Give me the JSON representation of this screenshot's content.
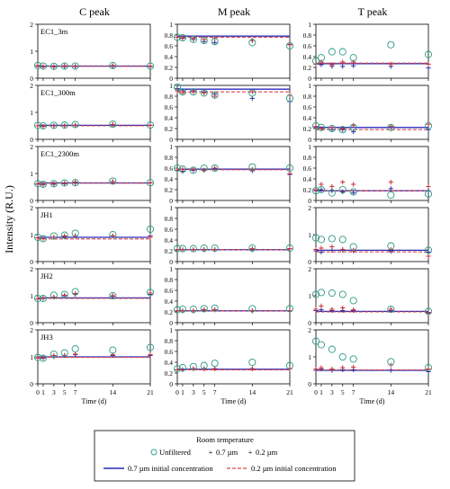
{
  "chart_data": {
    "type": "scatter",
    "column_titles": [
      "C peak",
      "M peak",
      "T peak"
    ],
    "ylabel": "Intensity (R.U.)",
    "xlabel": "Time (d)",
    "x_ticks": [
      0,
      1,
      3,
      5,
      7,
      14,
      21
    ],
    "xlim": [
      0,
      21
    ],
    "legend": {
      "title": "Room temperature",
      "items": [
        "Unfiltered",
        "0.7 µm",
        "0.2 µm"
      ],
      "line_items": [
        "0.7 µm initial concentration",
        "0.2 µm initial concentration"
      ]
    },
    "colors": {
      "unfiltered": "#2e9a84",
      "filtered_07": "#2f2fa0",
      "filtered_02": "#c8323c",
      "line_07": "#2a2ab8",
      "line_02": "#d84a4a"
    },
    "grid": false,
    "panels": [
      {
        "row": 0,
        "col": 0,
        "label": "EC1_3m",
        "ylim": [
          0,
          2
        ],
        "yticks": [
          0,
          1,
          2
        ],
        "days": [
          0,
          1,
          3,
          5,
          7,
          14,
          21
        ],
        "unfiltered": [
          0.47,
          0.45,
          0.44,
          0.45,
          0.45,
          0.47,
          0.45
        ],
        "f07": [
          0.44,
          0.42,
          0.42,
          0.43,
          0.43,
          0.44,
          0.43
        ],
        "f02": [
          0.47,
          0.43,
          0.43,
          0.46,
          0.44,
          0.47,
          0.45
        ],
        "init07": 0.45,
        "init02": 0.44
      },
      {
        "row": 0,
        "col": 1,
        "label": "",
        "ylim": [
          0,
          1
        ],
        "yticks": [
          0,
          0.2,
          0.4,
          0.6,
          0.8,
          1.0
        ],
        "days": [
          0,
          1,
          3,
          5,
          7,
          14,
          21
        ],
        "unfiltered": [
          0.76,
          0.75,
          0.72,
          0.7,
          0.68,
          0.66,
          0.6
        ],
        "f07": [
          0.76,
          0.74,
          0.72,
          0.68,
          0.66,
          0.7,
          0.62
        ],
        "f02": [
          0.76,
          0.75,
          0.74,
          0.72,
          0.74,
          0.7,
          0.63
        ],
        "init07": 0.78,
        "init02": 0.76
      },
      {
        "row": 0,
        "col": 2,
        "label": "",
        "ylim": [
          0,
          1
        ],
        "yticks": [
          0,
          0.2,
          0.4,
          0.6,
          0.8,
          1.0
        ],
        "days": [
          0,
          1,
          3,
          5,
          7,
          14,
          21
        ],
        "unfiltered": [
          0.32,
          0.38,
          0.49,
          0.49,
          0.38,
          0.62,
          0.44
        ],
        "f07": [
          0.26,
          0.25,
          0.22,
          0.22,
          0.23,
          0.22,
          0.19
        ],
        "f02": [
          0.26,
          0.3,
          0.25,
          0.3,
          0.3,
          0.26,
          0.26
        ],
        "init07": 0.27,
        "init02": 0.28
      },
      {
        "row": 1,
        "col": 0,
        "label": "EC1_300m",
        "ylim": [
          0,
          2
        ],
        "yticks": [
          0,
          1,
          2
        ],
        "days": [
          0,
          1,
          3,
          5,
          7,
          14,
          21
        ],
        "unfiltered": [
          0.52,
          0.5,
          0.52,
          0.53,
          0.55,
          0.56,
          0.53
        ],
        "f07": [
          0.5,
          0.48,
          0.5,
          0.5,
          0.52,
          0.55,
          0.52
        ],
        "f02": [
          0.5,
          0.48,
          0.5,
          0.5,
          0.52,
          0.55,
          0.52
        ],
        "init07": 0.52,
        "init02": 0.5
      },
      {
        "row": 1,
        "col": 1,
        "label": "",
        "ylim": [
          0,
          1
        ],
        "yticks": [
          0,
          0.2,
          0.4,
          0.6,
          0.8,
          1.0
        ],
        "days": [
          0,
          1,
          3,
          5,
          7,
          14,
          21
        ],
        "unfiltered": [
          0.97,
          0.88,
          0.88,
          0.86,
          0.82,
          0.86,
          0.76
        ],
        "f07": [
          0.94,
          0.9,
          0.9,
          0.88,
          0.84,
          0.76,
          0.7
        ],
        "f02": [
          0.9,
          0.86,
          0.88,
          0.86,
          0.8,
          0.88,
          0.82
        ],
        "init07": 0.93,
        "init02": 0.88
      },
      {
        "row": 1,
        "col": 2,
        "label": "",
        "ylim": [
          0,
          1
        ],
        "yticks": [
          0,
          0.2,
          0.4,
          0.6,
          0.8,
          1.0
        ],
        "days": [
          0,
          1,
          3,
          5,
          7,
          14,
          21
        ],
        "unfiltered": [
          0.25,
          0.22,
          0.2,
          0.18,
          0.22,
          0.22,
          0.25
        ],
        "f07": [
          0.22,
          0.2,
          0.18,
          0.18,
          0.14,
          0.22,
          0.18
        ],
        "f02": [
          0.24,
          0.2,
          0.22,
          0.2,
          0.26,
          0.24,
          0.28
        ],
        "init07": 0.22,
        "init02": 0.18
      },
      {
        "row": 2,
        "col": 0,
        "label": "EC1_2300m",
        "ylim": [
          0,
          2
        ],
        "yticks": [
          0,
          1,
          2
        ],
        "days": [
          0,
          1,
          3,
          5,
          7,
          14,
          21
        ],
        "unfiltered": [
          0.62,
          0.6,
          0.62,
          0.65,
          0.66,
          0.72,
          0.66
        ],
        "f07": [
          0.6,
          0.58,
          0.6,
          0.62,
          0.65,
          0.7,
          0.65
        ],
        "f02": [
          0.62,
          0.6,
          0.62,
          0.65,
          0.68,
          0.7,
          0.66
        ],
        "init07": 0.65,
        "init02": 0.64
      },
      {
        "row": 2,
        "col": 1,
        "label": "",
        "ylim": [
          0,
          1
        ],
        "yticks": [
          0,
          0.2,
          0.4,
          0.6,
          0.8,
          1.0
        ],
        "days": [
          0,
          1,
          3,
          5,
          7,
          14,
          21
        ],
        "unfiltered": [
          0.6,
          0.58,
          0.56,
          0.6,
          0.6,
          0.62,
          0.6
        ],
        "f07": [
          0.56,
          0.54,
          0.56,
          0.56,
          0.58,
          0.55,
          0.48
        ],
        "f02": [
          0.56,
          0.58,
          0.58,
          0.56,
          0.6,
          0.58,
          0.5
        ],
        "init07": 0.58,
        "init02": 0.57
      },
      {
        "row": 2,
        "col": 2,
        "label": "",
        "ylim": [
          0,
          1
        ],
        "yticks": [
          0,
          0.2,
          0.4,
          0.6,
          0.8,
          1.0
        ],
        "days": [
          0,
          1,
          3,
          5,
          7,
          14,
          21
        ],
        "unfiltered": [
          0.18,
          0.2,
          0.14,
          0.2,
          0.16,
          0.1,
          0.12
        ],
        "f07": [
          0.18,
          0.2,
          0.18,
          0.16,
          0.14,
          0.22,
          0.18
        ],
        "f02": [
          0.2,
          0.3,
          0.26,
          0.34,
          0.3,
          0.34,
          0.26
        ],
        "init07": 0.18,
        "init02": 0.18
      },
      {
        "row": 3,
        "col": 0,
        "label": "JH1",
        "ylim": [
          0,
          2
        ],
        "yticks": [
          0,
          1,
          2
        ],
        "days": [
          0,
          1,
          3,
          5,
          7,
          14,
          21
        ],
        "unfiltered": [
          0.9,
          0.85,
          0.95,
          0.98,
          1.05,
          1.0,
          1.2
        ],
        "f07": [
          0.88,
          0.85,
          0.9,
          0.92,
          0.95,
          0.95,
          0.95
        ],
        "f02": [
          0.88,
          0.85,
          0.9,
          0.95,
          0.95,
          0.95,
          0.9
        ],
        "init07": 0.9,
        "init02": 0.84
      },
      {
        "row": 3,
        "col": 1,
        "label": "",
        "ylim": [
          0,
          1
        ],
        "yticks": [
          0,
          0.2,
          0.4,
          0.6,
          0.8,
          1.0
        ],
        "days": [
          0,
          1,
          3,
          5,
          7,
          14,
          21
        ],
        "unfiltered": [
          0.24,
          0.24,
          0.24,
          0.25,
          0.25,
          0.25,
          0.25
        ],
        "f07": [
          0.22,
          0.22,
          0.22,
          0.22,
          0.22,
          0.22,
          0.24
        ],
        "f02": [
          0.22,
          0.22,
          0.22,
          0.22,
          0.22,
          0.24,
          0.24
        ],
        "init07": 0.22,
        "init02": 0.22
      },
      {
        "row": 3,
        "col": 2,
        "label": "",
        "ylim": [
          0,
          2
        ],
        "yticks": [
          0,
          1,
          2
        ],
        "days": [
          0,
          1,
          3,
          5,
          7,
          14,
          21
        ],
        "unfiltered": [
          0.88,
          0.82,
          0.85,
          0.82,
          0.55,
          0.58,
          0.42
        ],
        "f07": [
          0.4,
          0.35,
          0.42,
          0.42,
          0.4,
          0.38,
          0.35
        ],
        "f02": [
          0.45,
          0.5,
          0.55,
          0.45,
          0.42,
          0.45,
          0.2
        ],
        "init07": 0.42,
        "init02": 0.36
      },
      {
        "row": 4,
        "col": 0,
        "label": "JH2",
        "ylim": [
          0,
          2
        ],
        "yticks": [
          0,
          1,
          2
        ],
        "days": [
          0,
          1,
          3,
          5,
          7,
          14,
          21
        ],
        "unfiltered": [
          0.9,
          0.9,
          1.02,
          1.05,
          1.15,
          1.0,
          1.12
        ],
        "f07": [
          0.88,
          0.9,
          0.95,
          1.0,
          1.05,
          0.98,
          1.05
        ],
        "f02": [
          0.88,
          0.92,
          0.95,
          1.02,
          1.08,
          1.0,
          1.1
        ],
        "init07": 0.92,
        "init02": 0.9
      },
      {
        "row": 4,
        "col": 1,
        "label": "",
        "ylim": [
          0,
          1
        ],
        "yticks": [
          0,
          0.2,
          0.4,
          0.6,
          0.8,
          1.0
        ],
        "days": [
          0,
          1,
          3,
          5,
          7,
          14,
          21
        ],
        "unfiltered": [
          0.24,
          0.25,
          0.25,
          0.26,
          0.27,
          0.26,
          0.26
        ],
        "f07": [
          0.22,
          0.22,
          0.22,
          0.24,
          0.24,
          0.22,
          0.22
        ],
        "f02": [
          0.22,
          0.22,
          0.22,
          0.24,
          0.24,
          0.22,
          0.22
        ],
        "init07": 0.22,
        "init02": 0.22
      },
      {
        "row": 4,
        "col": 2,
        "label": "",
        "ylim": [
          0,
          2
        ],
        "yticks": [
          0,
          1,
          2
        ],
        "days": [
          0,
          1,
          3,
          5,
          7,
          14,
          21
        ],
        "unfiltered": [
          1.05,
          1.12,
          1.1,
          1.05,
          0.82,
          0.5,
          0.42
        ],
        "f07": [
          0.45,
          0.48,
          0.45,
          0.45,
          0.45,
          0.45,
          0.38
        ],
        "f02": [
          0.5,
          0.62,
          0.5,
          0.55,
          0.48,
          0.5,
          0.35
        ],
        "init07": 0.42,
        "init02": 0.4
      },
      {
        "row": 5,
        "col": 0,
        "label": "JH3",
        "ylim": [
          0,
          2
        ],
        "yticks": [
          0,
          1,
          2
        ],
        "days": [
          0,
          1,
          3,
          5,
          7,
          14,
          21
        ],
        "unfiltered": [
          0.98,
          0.95,
          1.1,
          1.15,
          1.3,
          1.25,
          1.35
        ],
        "f07": [
          0.95,
          0.95,
          1.0,
          1.05,
          1.08,
          1.05,
          1.05
        ],
        "f02": [
          0.95,
          0.98,
          1.05,
          1.05,
          1.1,
          1.08,
          1.08
        ],
        "init07": 1.0,
        "init02": 0.98
      },
      {
        "row": 5,
        "col": 1,
        "label": "",
        "ylim": [
          0,
          1
        ],
        "yticks": [
          0,
          0.2,
          0.4,
          0.6,
          0.8,
          1.0
        ],
        "days": [
          0,
          1,
          3,
          5,
          7,
          14,
          21
        ],
        "unfiltered": [
          0.28,
          0.3,
          0.32,
          0.34,
          0.38,
          0.4,
          0.34
        ],
        "f07": [
          0.26,
          0.26,
          0.28,
          0.28,
          0.28,
          0.28,
          0.28
        ],
        "f02": [
          0.26,
          0.26,
          0.28,
          0.28,
          0.28,
          0.28,
          0.28
        ],
        "init07": 0.27,
        "init02": 0.26
      },
      {
        "row": 5,
        "col": 2,
        "label": "",
        "ylim": [
          0,
          2
        ],
        "yticks": [
          0,
          1,
          2
        ],
        "days": [
          0,
          1,
          3,
          5,
          7,
          14,
          21
        ],
        "unfiltered": [
          1.58,
          1.45,
          1.28,
          1.0,
          0.92,
          0.82,
          0.6
        ],
        "f07": [
          0.5,
          0.55,
          0.5,
          0.52,
          0.52,
          0.5,
          0.45
        ],
        "f02": [
          0.55,
          0.6,
          0.55,
          0.6,
          0.62,
          0.7,
          0.55
        ],
        "init07": 0.5,
        "init02": 0.52
      }
    ]
  }
}
